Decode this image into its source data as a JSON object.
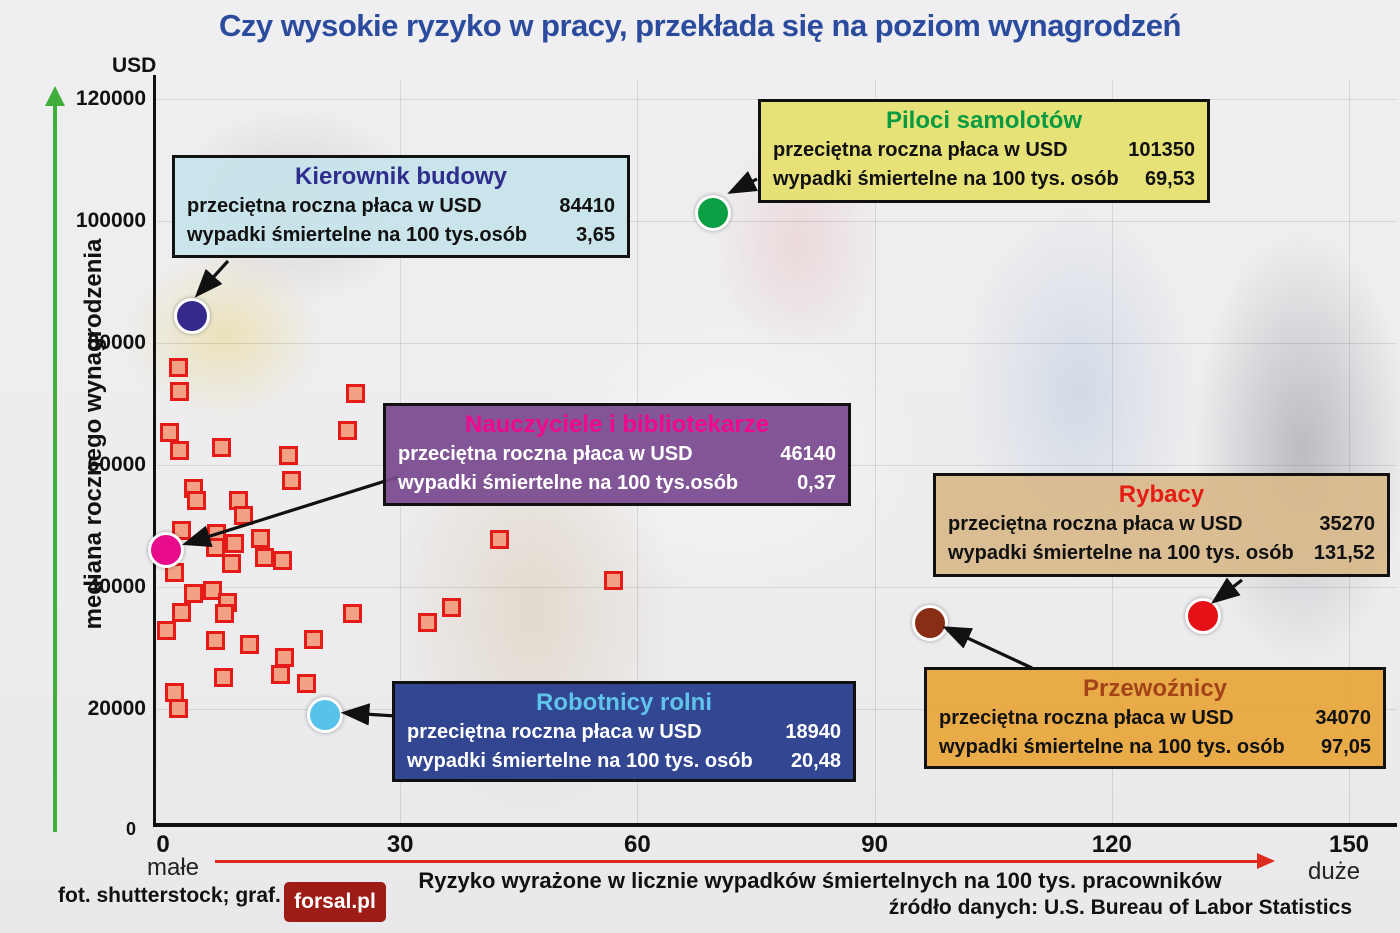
{
  "title": "Czy wysokie ryzyko w pracy, przekłada się na poziom wynagrodzeń",
  "colors": {
    "title_blue": "#2b4b9e",
    "square_fill": "#f2a184",
    "square_border": "#e41b17",
    "green_axis_arrow": "#3fae3b",
    "red_axis_arrow": "#dd2b20"
  },
  "y_axis": {
    "unit": "USD",
    "label": "mediana rocznego wynagrodzenia",
    "ticks": [
      0,
      20000,
      40000,
      60000,
      80000,
      100000,
      120000
    ]
  },
  "x_axis": {
    "ticks": [
      0,
      30,
      60,
      90,
      120,
      150
    ],
    "min_label": "małe",
    "max_label": "duże",
    "label": "Ryzyko wyrażone w licznie wypadków śmiertelnych na 100 tys. pracowników"
  },
  "callouts": {
    "kierownik": {
      "title": "Kierownik budowy",
      "salary_label": "przeciętna roczna płaca w USD",
      "salary_value": "84410",
      "risk_label": "wypadki śmiertelne na 100 tys.osób",
      "risk_value": "3,65"
    },
    "piloci": {
      "title": "Piloci samolotów",
      "salary_label": "przeciętna roczna płaca w USD",
      "salary_value": "101350",
      "risk_label": "wypadki śmiertelne na 100 tys. osób",
      "risk_value": "69,53"
    },
    "nauczyciele": {
      "title": "Nauczyciele i bibliotekarze",
      "salary_label": "przeciętna roczna płaca w USD",
      "salary_value": "46140",
      "risk_label": "wypadki śmiertelne na 100 tys.osób",
      "risk_value": "0,37"
    },
    "rybacy": {
      "title": "Rybacy",
      "salary_label": "przeciętna roczna płaca w USD",
      "salary_value": "35270",
      "risk_label": "wypadki śmiertelne na 100 tys. osób",
      "risk_value": "131,52"
    },
    "przewoznicy": {
      "title": "Przewoźnicy",
      "salary_label": "przeciętna roczna płaca w USD",
      "salary_value": "34070",
      "risk_label": "wypadki śmiertelne na 100 tys. osób",
      "risk_value": "97,05"
    },
    "robotnicy": {
      "title": "Robotnicy rolni",
      "salary_label": "przeciętna roczna płaca w USD",
      "salary_value": "18940",
      "risk_label": "wypadki śmiertelne na 100 tys. osób",
      "risk_value": "20,48"
    }
  },
  "footer": {
    "credit": "fot. shutterstock; graf.",
    "logo": "forsal.pl",
    "source": "źródło danych: U.S. Bureau of Labor Statistics"
  },
  "chart_data": {
    "type": "scatter",
    "title": "Czy wysokie ryzyko w pracy, przekłada się na poziom wynagrodzeń",
    "xlabel": "Ryzyko wyrażone w licznie wypadków śmiertelnych na 100 tys. pracowników",
    "ylabel": "mediana rocznego wynagrodzenia (USD)",
    "xlim": [
      0,
      150
    ],
    "ylim": [
      0,
      120000
    ],
    "grid": true,
    "highlighted": [
      {
        "slug": "kierownik-budowy",
        "name": "Kierownik budowy",
        "risk": 3.65,
        "salary": 84410,
        "color": "#352a8b"
      },
      {
        "slug": "piloci-samolotow",
        "name": "Piloci samolotów",
        "risk": 69.53,
        "salary": 101350,
        "color": "#0b9f43"
      },
      {
        "slug": "nauczyciele-i-bibliotekarze",
        "name": "Nauczyciele i bibliotekarze",
        "risk": 0.37,
        "salary": 46140,
        "color": "#e70b8c"
      },
      {
        "slug": "robotnicy-rolni",
        "name": "Robotnicy rolni",
        "risk": 20.48,
        "salary": 18940,
        "color": "#57c3ea"
      },
      {
        "slug": "przewoznicy",
        "name": "Przewoźnicy",
        "risk": 97.05,
        "salary": 34070,
        "color": "#8a2d16"
      },
      {
        "slug": "rybacy",
        "name": "Rybacy",
        "risk": 131.52,
        "salary": 35270,
        "color": "#e51117"
      }
    ],
    "other_points": [
      [
        1.9,
        76000
      ],
      [
        2.1,
        72000
      ],
      [
        0.8,
        65300
      ],
      [
        2.1,
        62400
      ],
      [
        7.4,
        62800
      ],
      [
        24.3,
        71800
      ],
      [
        23.3,
        65700
      ],
      [
        15.9,
        61600
      ],
      [
        16.3,
        57500
      ],
      [
        3.8,
        56100
      ],
      [
        4.2,
        54100
      ],
      [
        9.5,
        54100
      ],
      [
        10.2,
        51800
      ],
      [
        2.4,
        49300
      ],
      [
        6.8,
        48800
      ],
      [
        12.3,
        48000
      ],
      [
        9.1,
        47100
      ],
      [
        6.6,
        46400
      ],
      [
        12.9,
        44800
      ],
      [
        15.1,
        44400
      ],
      [
        8.7,
        43900
      ],
      [
        1.5,
        42300
      ],
      [
        6.2,
        39500
      ],
      [
        3.8,
        39000
      ],
      [
        8.1,
        37400
      ],
      [
        2.4,
        35900
      ],
      [
        7.8,
        35700
      ],
      [
        42.6,
        47800
      ],
      [
        57.0,
        41000
      ],
      [
        36.5,
        36700
      ],
      [
        33.4,
        34100
      ],
      [
        24.0,
        35700
      ],
      [
        0.5,
        32900
      ],
      [
        6.6,
        31300
      ],
      [
        11.0,
        30500
      ],
      [
        19.0,
        31400
      ],
      [
        15.4,
        28400
      ],
      [
        14.8,
        25600
      ],
      [
        18.2,
        24100
      ],
      [
        7.6,
        25100
      ],
      [
        1.5,
        22700
      ],
      [
        1.9,
        20100
      ]
    ]
  }
}
